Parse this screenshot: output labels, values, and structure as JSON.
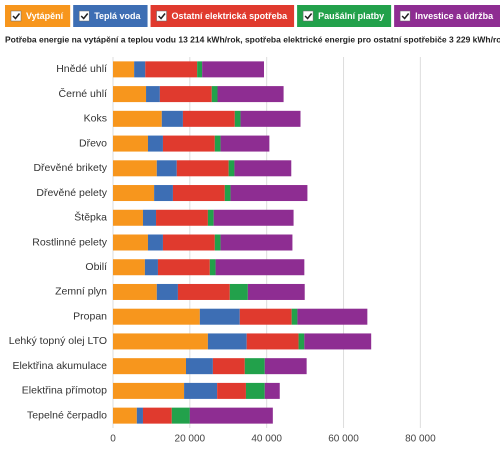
{
  "chart_data": {
    "type": "stacked-bar-horizontal",
    "subtitle": "Potřeba energie na vytápění a teplou vodu 13 214 kWh/rok, spotřeba elektrické energie pro ostatní spotřebiče 3 229 kWh/rok",
    "categories": [
      "Hnědé uhlí",
      "Černé uhlí",
      "Koks",
      "Dřevo",
      "Dřevěné brikety",
      "Dřevěné pelety",
      "Štěpka",
      "Rostlinné pelety",
      "Obilí",
      "Zemní plyn",
      "Propan",
      "Lehký topný olej LTO",
      "Elektřina akumulace",
      "Elektřina přímotop",
      "Tepelné čerpadlo"
    ],
    "series": [
      {
        "name": "Vytápění",
        "color": "#f7961d",
        "values": [
          5500,
          8600,
          12700,
          9100,
          11400,
          10700,
          7800,
          9100,
          8300,
          11400,
          22600,
          24700,
          19000,
          18500,
          6200
        ]
      },
      {
        "name": "Teplá voda",
        "color": "#3d6eb4",
        "values": [
          2900,
          3600,
          5500,
          3900,
          5200,
          4900,
          3400,
          3900,
          3400,
          5500,
          10400,
          10100,
          7000,
          8600,
          1600
        ]
      },
      {
        "name": "Ostatní elektrická spotřeba",
        "color": "#e03a2e",
        "values": [
          13500,
          13500,
          13500,
          13500,
          13500,
          13500,
          13500,
          13500,
          13500,
          13500,
          13500,
          13500,
          8300,
          7500,
          7500
        ]
      },
      {
        "name": "Paušální platby",
        "color": "#22a14b",
        "values": [
          1300,
          1500,
          1500,
          1500,
          1500,
          1500,
          1500,
          1500,
          1500,
          4700,
          1500,
          1500,
          5200,
          4900,
          4700
        ]
      },
      {
        "name": "Investice a údržba",
        "color": "#8e2d92",
        "values": [
          16100,
          17200,
          15600,
          12700,
          14800,
          20000,
          20800,
          18700,
          23100,
          14800,
          18200,
          17400,
          10900,
          3900,
          21600
        ]
      }
    ],
    "xlim": [
      0,
      95000
    ],
    "xticks": [
      0,
      {
        "value": 20000,
        "label": "20 000"
      },
      {
        "value": 40000,
        "label": "40 000"
      },
      {
        "value": 60000,
        "label": "60 000"
      },
      {
        "value": 80000,
        "label": "80 000"
      }
    ],
    "grid": true
  }
}
